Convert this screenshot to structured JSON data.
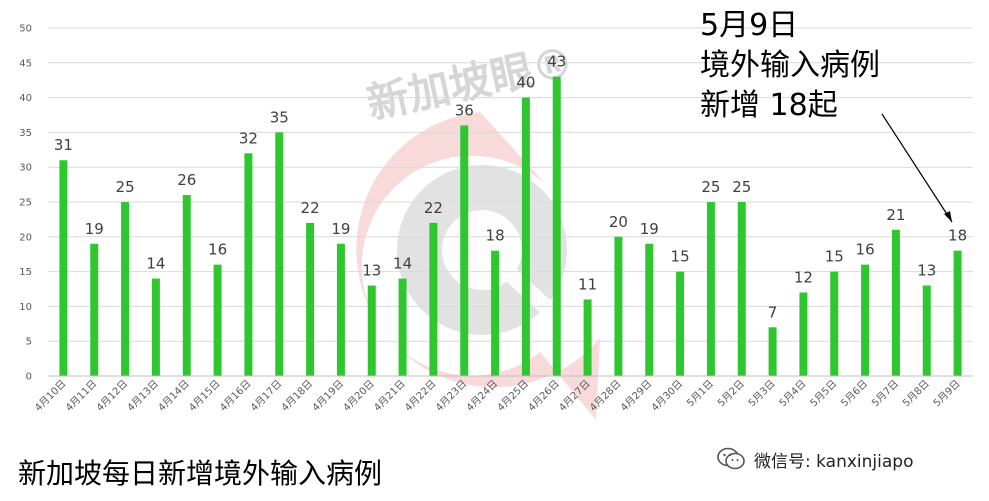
{
  "annotation": {
    "line1": "5月9日",
    "line2": "境外输入病例",
    "line3": "新增 18起"
  },
  "bottom_title": "新加坡每日新增境外输入病例",
  "watermark": {
    "text": "新加坡眼®",
    "account": "微信号: kanxinjiapo"
  },
  "colors": {
    "bar": "#2fc72f",
    "gridline": "#d9d9d9",
    "watermark_red": "#f5c6c6",
    "watermark_gray": "#d4d4d4"
  },
  "chart_data": {
    "type": "bar",
    "categories": [
      "4月10日",
      "4月11日",
      "4月12日",
      "4月13日",
      "4月14日",
      "4月15日",
      "4月16日",
      "4月17日",
      "4月18日",
      "4月19日",
      "4月20日",
      "4月21日",
      "4月22日",
      "4月23日",
      "4月24日",
      "4月25日",
      "4月26日",
      "4月27日",
      "4月28日",
      "4月29日",
      "4月30日",
      "5月1日",
      "5月2日",
      "5月3日",
      "5月4日",
      "5月5日",
      "5月6日",
      "5月7日",
      "5月8日",
      "5月9日"
    ],
    "values": [
      31,
      19,
      25,
      14,
      26,
      16,
      32,
      35,
      22,
      19,
      13,
      14,
      22,
      36,
      18,
      40,
      43,
      11,
      20,
      19,
      15,
      25,
      25,
      7,
      12,
      15,
      16,
      21,
      13,
      18
    ],
    "yticks": [
      0,
      5,
      10,
      15,
      20,
      25,
      30,
      35,
      40,
      45,
      50
    ],
    "ylim": [
      0,
      50
    ],
    "grid": true,
    "title": "",
    "xlabel": "",
    "ylabel": ""
  }
}
